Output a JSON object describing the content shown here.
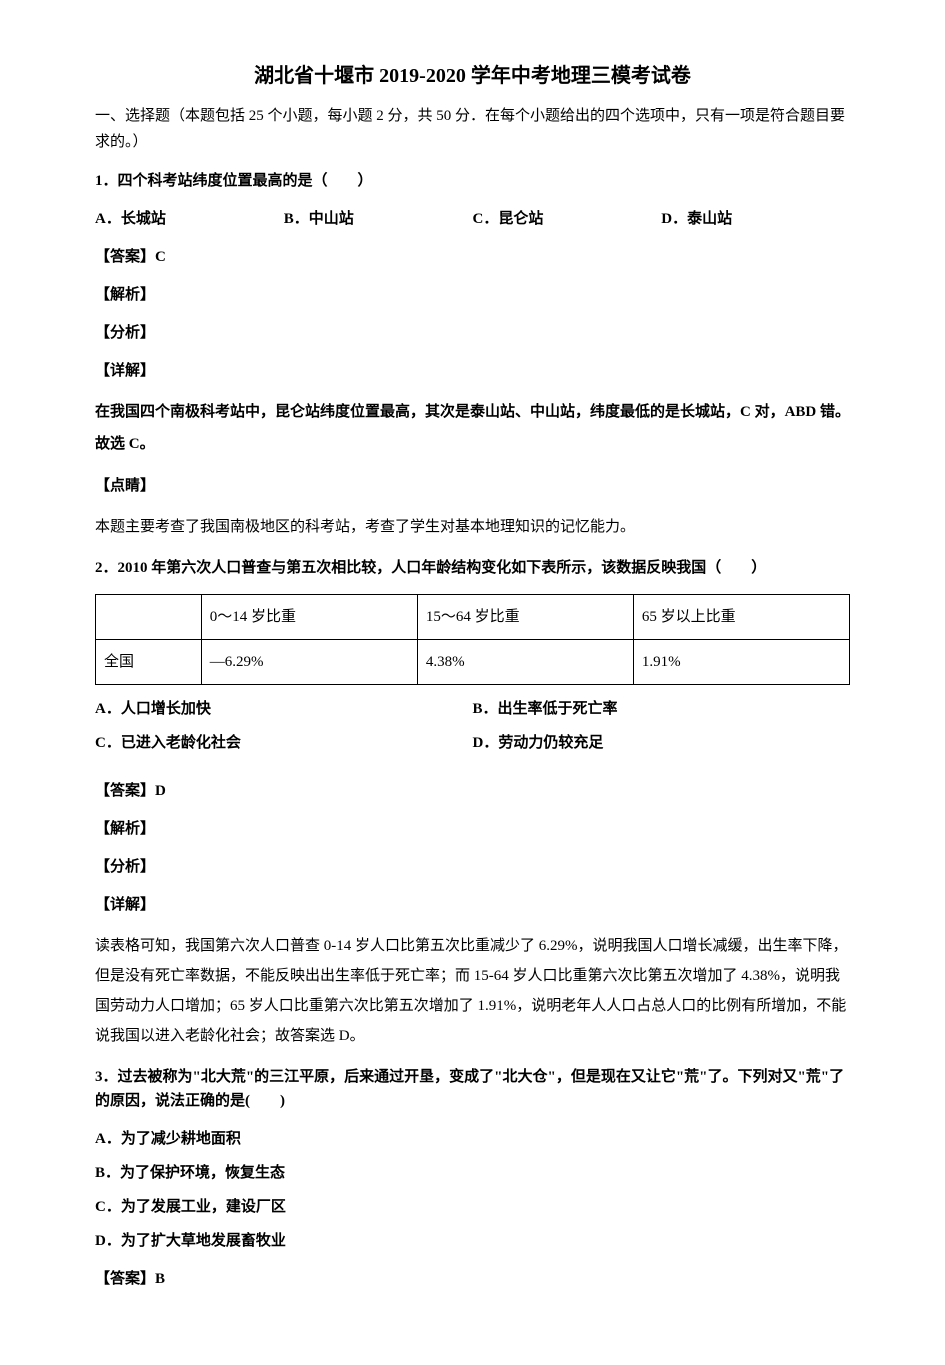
{
  "title": "湖北省十堰市 2019-2020 学年中考地理三模考试卷",
  "instructions": "一、选择题（本题包括 25 个小题，每小题 2 分，共 50 分．在每个小题给出的四个选项中，只有一项是符合题目要求的。）",
  "q1": {
    "stem": "1．四个科考站纬度位置最高的是（　　）",
    "a": "A．长城站",
    "b": "B．中山站",
    "c": "C．昆仑站",
    "d": "D．泰山站",
    "answer_label": "【答案】C",
    "jiexi": "【解析】",
    "fenxi": "【分析】",
    "xiangjie": "【详解】",
    "detail": "在我国四个南极科考站中，昆仑站纬度位置最高，其次是泰山站、中山站，纬度最低的是长城站，C 对，ABD 错。故选 C。",
    "dianjing": "【点睛】",
    "dianjing_text": "本题主要考查了我国南极地区的科考站，考查了学生对基本地理知识的记忆能力。"
  },
  "q2": {
    "stem": "2．2010 年第六次人口普查与第五次相比较，人口年龄结构变化如下表所示，该数据反映我国（　　）",
    "table": {
      "headers": [
        "",
        "0～14 岁比重",
        "15～64 岁比重",
        "65 岁以上比重"
      ],
      "row": [
        "全国",
        "—6.29%",
        "4.38%",
        "1.91%"
      ]
    },
    "a": "A．人口增长加快",
    "b": "B．出生率低于死亡率",
    "c": "C．已进入老龄化社会",
    "d": "D．劳动力仍较充足",
    "answer_label": "【答案】D",
    "jiexi": "【解析】",
    "fenxi": "【分析】",
    "xiangjie": "【详解】",
    "detail": "读表格可知，我国第六次人口普查 0-14 岁人口比第五次比重减少了 6.29%，说明我国人口增长减缓，出生率下降，但是没有死亡率数据，不能反映出出生率低于死亡率；而 15-64 岁人口比重第六次比第五次增加了 4.38%，说明我国劳动力人口增加；65 岁人口比重第六次比第五次增加了 1.91%，说明老年人人口占总人口的比例有所增加，不能说我国以进入老龄化社会；故答案选 D。"
  },
  "q3": {
    "stem": "3．过去被称为\"北大荒\"的三江平原，后来通过开垦，变成了\"北大仓\"，但是现在又让它\"荒\"了。下列对又\"荒\"了的原因，说法正确的是(　　)",
    "a": "A．为了减少耕地面积",
    "b": "B．为了保护环境，恢复生态",
    "c": "C．为了发展工业，建设厂区",
    "d": "D．为了扩大草地发展畜牧业",
    "answer_label": "【答案】B"
  }
}
